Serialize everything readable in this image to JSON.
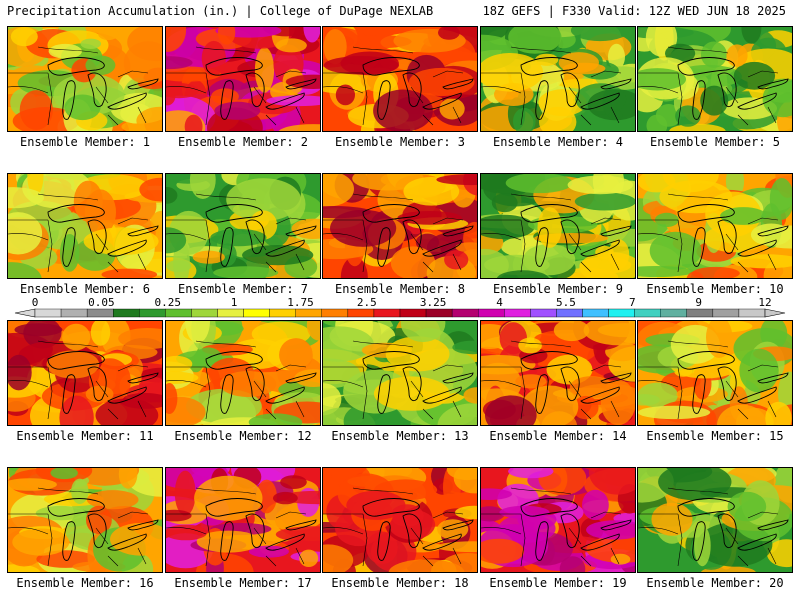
{
  "header": {
    "left": "Precipitation Accumulation (in.) | College of DuPage NEXLAB",
    "right": "18Z GEFS | F330 Valid: 12Z WED JUN 18 2025"
  },
  "caption_prefix": "Ensemble Member:",
  "members": [
    {
      "label": "Ensemble Member: 1",
      "theme": "orange"
    },
    {
      "label": "Ensemble Member: 2",
      "theme": "magenta"
    },
    {
      "label": "Ensemble Member: 3",
      "theme": "red"
    },
    {
      "label": "Ensemble Member: 4",
      "theme": "green"
    },
    {
      "label": "Ensemble Member: 5",
      "theme": "green"
    },
    {
      "label": "Ensemble Member: 6",
      "theme": "orange"
    },
    {
      "label": "Ensemble Member: 7",
      "theme": "green"
    },
    {
      "label": "Ensemble Member: 8",
      "theme": "red"
    },
    {
      "label": "Ensemble Member: 9",
      "theme": "green"
    },
    {
      "label": "Ensemble Member: 10",
      "theme": "orange"
    },
    {
      "label": "Ensemble Member: 11",
      "theme": "red"
    },
    {
      "label": "Ensemble Member: 12",
      "theme": "orange"
    },
    {
      "label": "Ensemble Member: 13",
      "theme": "green"
    },
    {
      "label": "Ensemble Member: 14",
      "theme": "red"
    },
    {
      "label": "Ensemble Member: 15",
      "theme": "orange"
    },
    {
      "label": "Ensemble Member: 16",
      "theme": "orange"
    },
    {
      "label": "Ensemble Member: 17",
      "theme": "magenta"
    },
    {
      "label": "Ensemble Member: 18",
      "theme": "red"
    },
    {
      "label": "Ensemble Member: 19",
      "theme": "magenta"
    },
    {
      "label": "Ensemble Member: 20",
      "theme": "green"
    }
  ],
  "colorbar": {
    "labels": [
      "0",
      "0.05",
      "0.25",
      "1",
      "1.75",
      "2.5",
      "3.25",
      "4",
      "5.5",
      "7",
      "9",
      "12"
    ],
    "colors": [
      "#d8d8d8",
      "#b0b0b0",
      "#8c8c8c",
      "#1f7a1f",
      "#2e9a2e",
      "#5fbf2e",
      "#9fd63a",
      "#e6f040",
      "#ffff00",
      "#ffd000",
      "#ffa500",
      "#ff7f00",
      "#ff4500",
      "#e8161e",
      "#c00018",
      "#9b0028",
      "#b40070",
      "#d000b0",
      "#e020e0",
      "#a050ff",
      "#7070ff",
      "#40c0ff",
      "#20f0f0",
      "#40d0c0",
      "#60b0a0",
      "#808080",
      "#a0a0a0",
      "#c8c8c8"
    ]
  },
  "palettes": {
    "green": [
      "#2e9a2e",
      "#5fbf2e",
      "#9fd63a",
      "#1f7a1f",
      "#e6f040",
      "#ffd000",
      "#ffa500"
    ],
    "orange": [
      "#ffa500",
      "#ffd000",
      "#ff7f00",
      "#9fd63a",
      "#e6f040",
      "#ff4500",
      "#5fbf2e"
    ],
    "red": [
      "#ff4500",
      "#e8161e",
      "#ff7f00",
      "#c00018",
      "#ffa500",
      "#9b0028",
      "#ffd000"
    ],
    "magenta": [
      "#e8161e",
      "#ff4500",
      "#c00018",
      "#b40070",
      "#d000b0",
      "#ffa500",
      "#e020e0"
    ]
  }
}
